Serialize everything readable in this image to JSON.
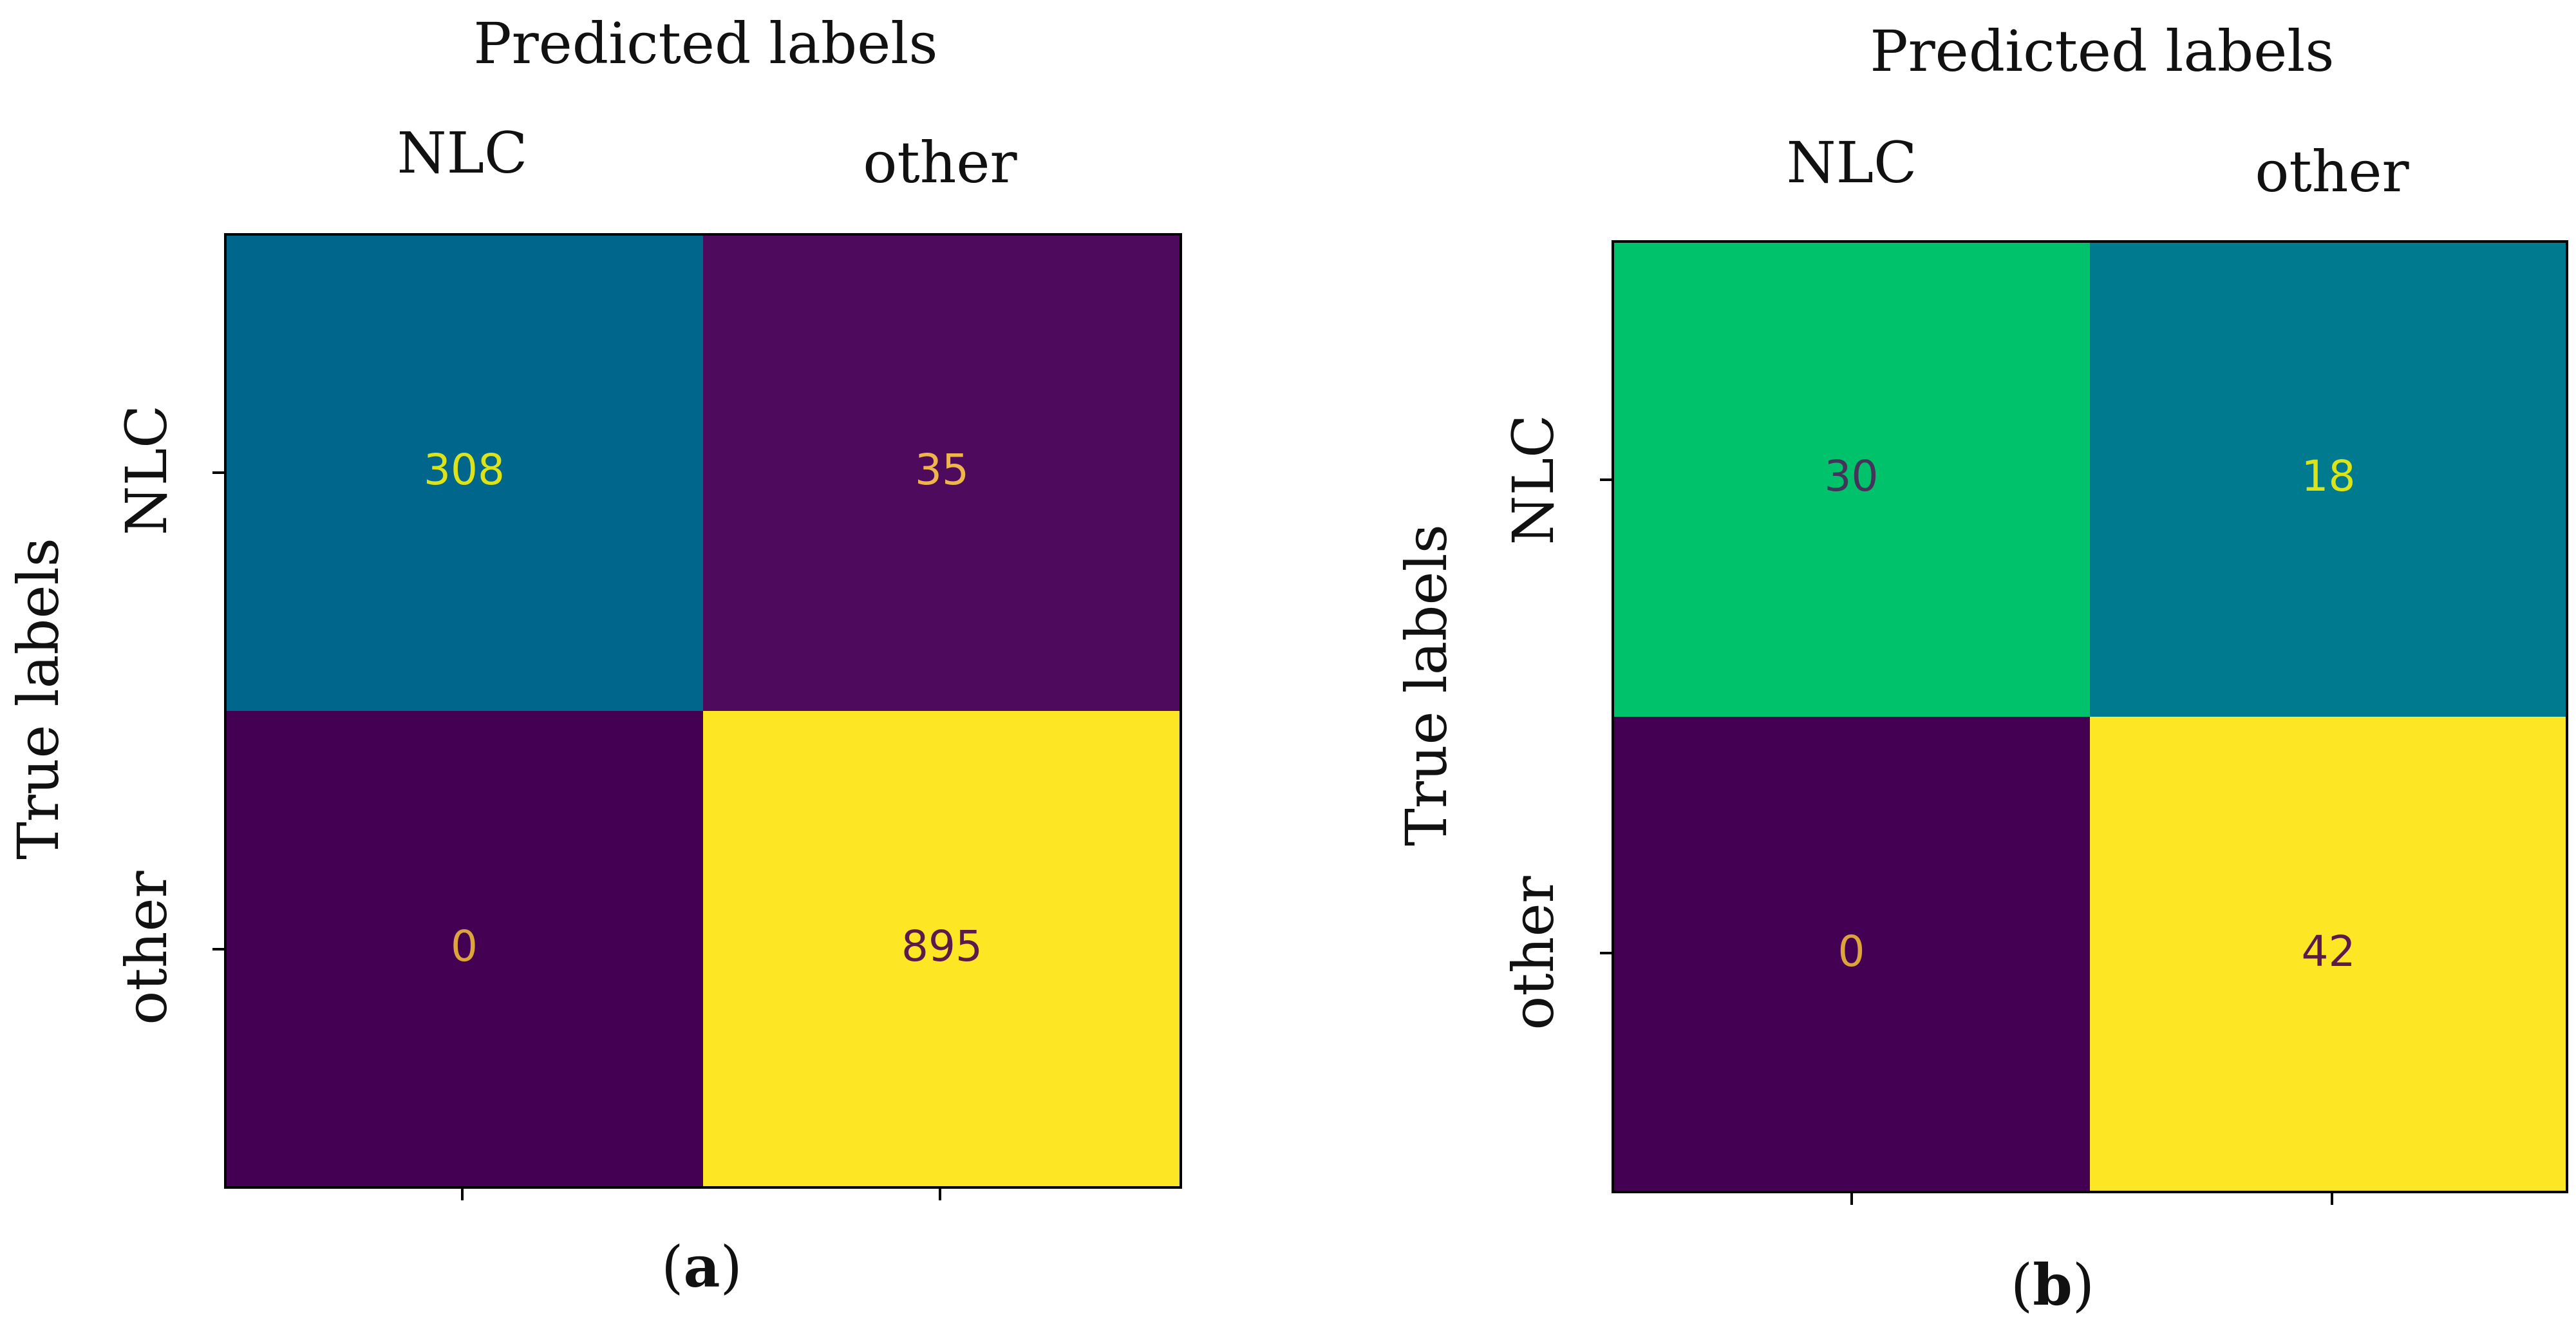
{
  "chart_data": [
    {
      "type": "heatmap",
      "subtitle": "Predicted labels",
      "xlabel": "Predicted labels",
      "ylabel": "True labels",
      "x_categories": [
        "NLC",
        "other"
      ],
      "y_categories": [
        "NLC",
        "other"
      ],
      "values": [
        [
          308,
          35
        ],
        [
          0,
          895
        ]
      ],
      "value_labels": [
        [
          "308",
          "35"
        ],
        [
          "0",
          "895"
        ]
      ],
      "caption_open": "(",
      "caption_letter": "a",
      "caption_close": ")",
      "cell_colors": [
        [
          "#00668B",
          "#4E0A5C"
        ],
        [
          "#440154",
          "#FDE725"
        ]
      ],
      "text_colors": [
        [
          "#DCE319",
          "#EFB54A"
        ],
        [
          "#DCA43A",
          "#5B1A49"
        ]
      ]
    },
    {
      "type": "heatmap",
      "subtitle": "Predicted labels",
      "xlabel": "Predicted labels",
      "ylabel": "True labels",
      "x_categories": [
        "NLC",
        "other"
      ],
      "y_categories": [
        "NLC",
        "other"
      ],
      "values": [
        [
          30,
          18
        ],
        [
          0,
          42
        ]
      ],
      "value_labels": [
        [
          "30",
          "18"
        ],
        [
          "0",
          "42"
        ]
      ],
      "caption_open": "(",
      "caption_letter": "b",
      "caption_close": ")",
      "cell_colors": [
        [
          "#00C26A",
          "#007A8E"
        ],
        [
          "#440154",
          "#FDE725"
        ]
      ],
      "text_colors": [
        [
          "#44335A",
          "#DCE319"
        ],
        [
          "#DCA43A",
          "#5B1A49"
        ]
      ]
    }
  ]
}
